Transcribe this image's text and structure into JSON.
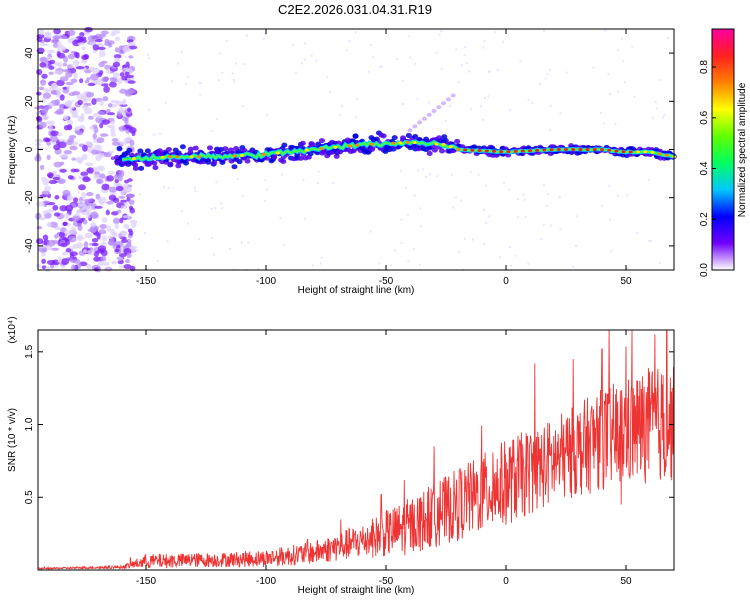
{
  "title": "C2E2.2026.031.04.31.R19",
  "chart_data": [
    {
      "type": "heatmap",
      "name": "spectrogram",
      "xlabel": "Height of straight line (km)",
      "ylabel": "Frequency (Hz)",
      "xlim": [
        -195,
        70
      ],
      "ylim": [
        -50,
        50
      ],
      "xticks": [
        -150,
        -100,
        -50,
        0,
        50
      ],
      "yticks": [
        -40,
        -20,
        0,
        20,
        40
      ],
      "colorbar": {
        "label": "Normalized spectral amplitude",
        "range": [
          0.0,
          0.95
        ],
        "ticks": [
          0.0,
          0.2,
          0.4,
          0.6,
          0.8
        ],
        "tick_labels": [
          "0.0",
          "0.2",
          "0.4",
          "0.6",
          "0.8"
        ],
        "colors": [
          "#ffffff",
          "#7000ff",
          "#0000ff",
          "#00c8ff",
          "#00ff60",
          "#60ff00",
          "#ffff00",
          "#ff8000",
          "#ff2020",
          "#ff00a0"
        ]
      },
      "ridge": [
        {
          "x": -160,
          "y": -4
        },
        {
          "x": -140,
          "y": -3
        },
        {
          "x": -120,
          "y": -3
        },
        {
          "x": -100,
          "y": -2
        },
        {
          "x": -80,
          "y": 0
        },
        {
          "x": -60,
          "y": 2
        },
        {
          "x": -40,
          "y": 3
        },
        {
          "x": -25,
          "y": 2
        },
        {
          "x": -20,
          "y": 0
        },
        {
          "x": 0,
          "y": -1
        },
        {
          "x": 20,
          "y": 0
        },
        {
          "x": 40,
          "y": 0
        },
        {
          "x": 50,
          "y": -1
        },
        {
          "x": 60,
          "y": -1
        },
        {
          "x": 70,
          "y": -3
        }
      ]
    },
    {
      "type": "line",
      "name": "snr",
      "xlabel": "Height of straight line (km)",
      "ylabel": "SNR (10 * v/v)",
      "yscale_label": "(x10⁴)",
      "xlim": [
        -195,
        70
      ],
      "ylim": [
        0,
        1.65
      ],
      "xticks": [
        -150,
        -100,
        -50,
        0,
        50
      ],
      "yticks": [
        0.5,
        1.0,
        1.5
      ],
      "ytick_labels": [
        "0.5",
        "1.0",
        "1.5"
      ],
      "color": "#ee3333",
      "envelope": [
        {
          "x": -195,
          "mean": 0.01,
          "amp": 0.005
        },
        {
          "x": -160,
          "mean": 0.02,
          "amp": 0.01
        },
        {
          "x": -150,
          "mean": 0.06,
          "amp": 0.05
        },
        {
          "x": -120,
          "mean": 0.07,
          "amp": 0.05
        },
        {
          "x": -100,
          "mean": 0.08,
          "amp": 0.06
        },
        {
          "x": -80,
          "mean": 0.12,
          "amp": 0.08
        },
        {
          "x": -60,
          "mean": 0.2,
          "amp": 0.12
        },
        {
          "x": -40,
          "mean": 0.3,
          "amp": 0.2
        },
        {
          "x": -20,
          "mean": 0.45,
          "amp": 0.25
        },
        {
          "x": 0,
          "mean": 0.6,
          "amp": 0.3
        },
        {
          "x": 20,
          "mean": 0.75,
          "amp": 0.3
        },
        {
          "x": 40,
          "mean": 0.9,
          "amp": 0.35
        },
        {
          "x": 60,
          "mean": 1.0,
          "amp": 0.4
        },
        {
          "x": 70,
          "mean": 1.0,
          "amp": 0.4
        }
      ],
      "peaks": [
        {
          "x": 67,
          "y": 1.65
        },
        {
          "x": 62,
          "y": 1.62
        },
        {
          "x": 40,
          "y": 1.52
        },
        {
          "x": 28,
          "y": 1.45
        },
        {
          "x": 12,
          "y": 1.42
        },
        {
          "x": -30,
          "y": 0.85
        },
        {
          "x": -52,
          "y": 0.52
        },
        {
          "x": 48,
          "y": 0.45
        }
      ]
    }
  ]
}
